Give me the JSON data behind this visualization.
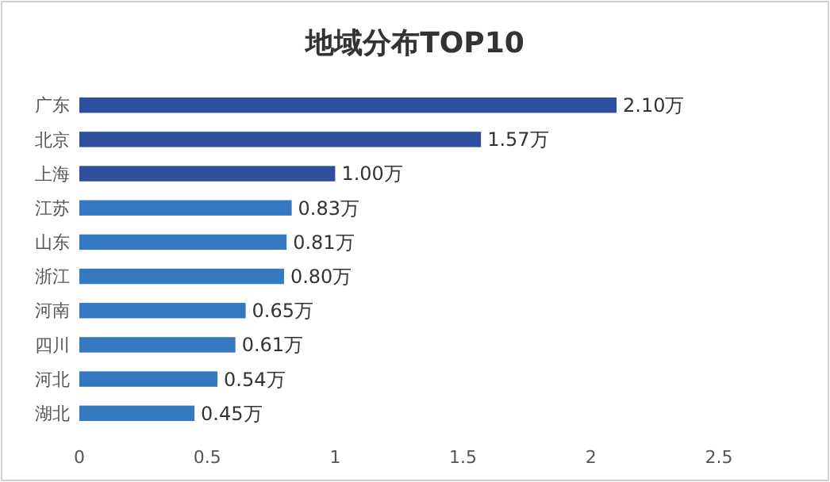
{
  "chart_data": {
    "type": "bar",
    "orientation": "horizontal",
    "title": "地域分布TOP10",
    "categories": [
      "广东",
      "北京",
      "上海",
      "江苏",
      "山东",
      "浙江",
      "河南",
      "四川",
      "河北",
      "湖北"
    ],
    "values": [
      2.1,
      1.57,
      1.0,
      0.83,
      0.81,
      0.8,
      0.65,
      0.61,
      0.54,
      0.45
    ],
    "colors": [
      "#2e4f9e",
      "#2e4f9e",
      "#2e4f9e",
      "#3478c0",
      "#3478c0",
      "#3478c0",
      "#3478c0",
      "#3478c0",
      "#3478c0",
      "#3478c0"
    ],
    "value_labels": [
      "2.10万",
      "1.57万",
      "1.00万",
      "0.83万",
      "0.81万",
      "0.80万",
      "0.65万",
      "0.61万",
      "0.54万",
      "0.45万"
    ],
    "xlim": [
      0,
      2.5
    ],
    "xticks": [
      0,
      0.5,
      1,
      1.5,
      2,
      2.5
    ],
    "grid": false
  }
}
